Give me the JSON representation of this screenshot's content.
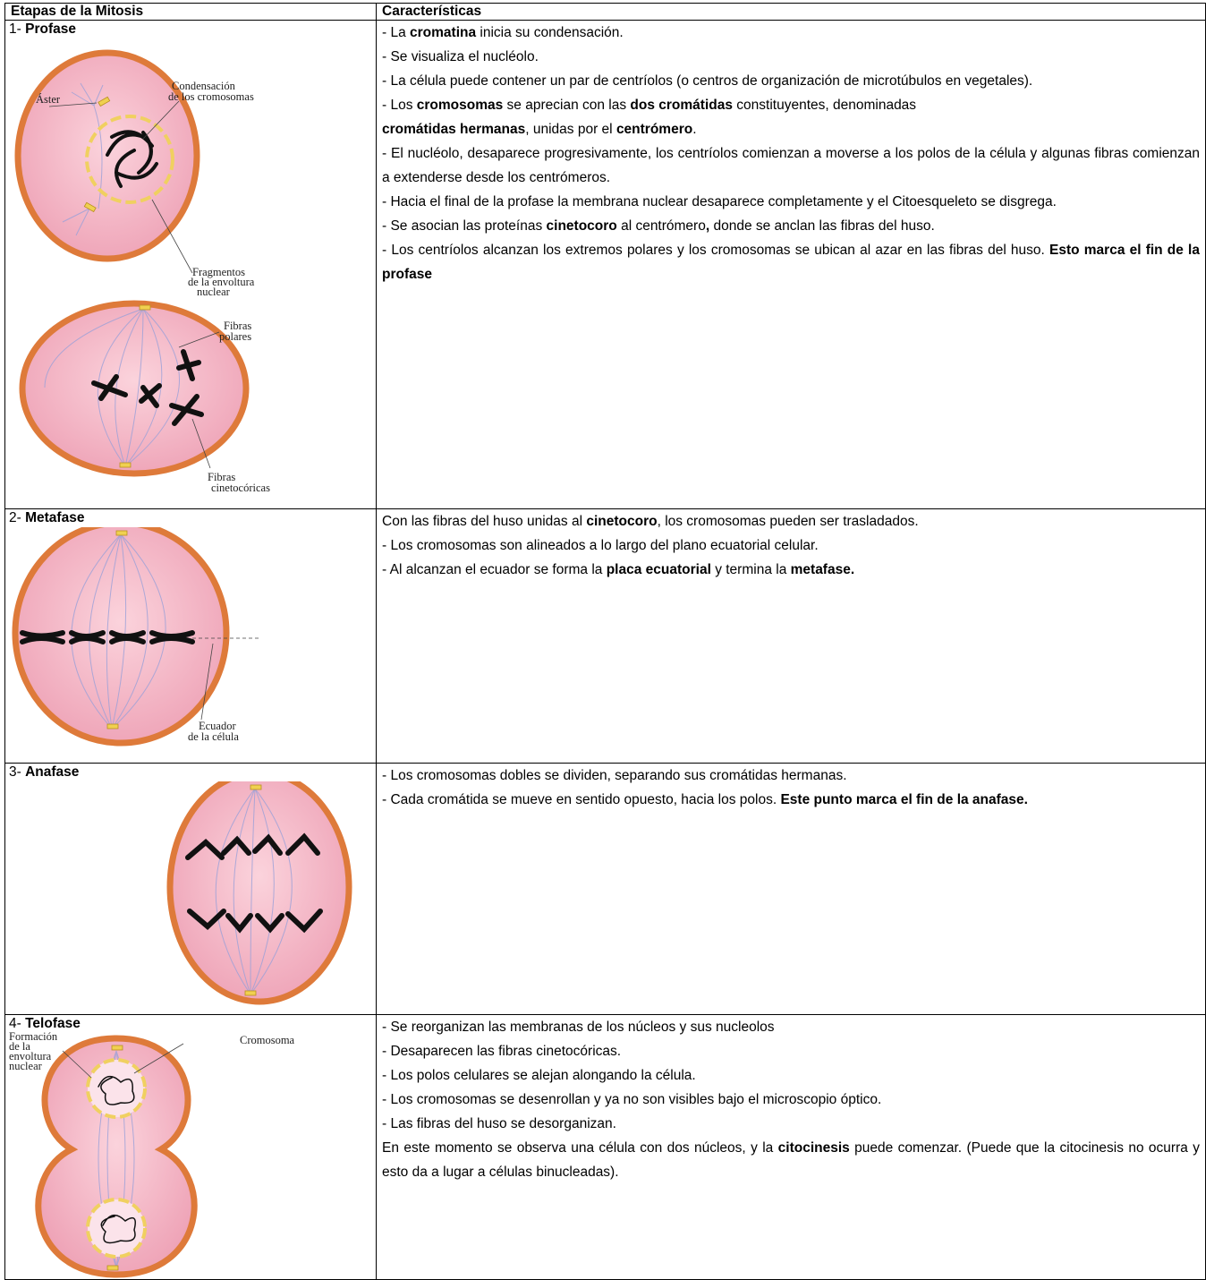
{
  "table": {
    "header": [
      "Etapas de la Mitosis",
      "Características"
    ],
    "rows": [
      {
        "number": "1-",
        "stage": "Profase",
        "figure_labels": [
          [
            "Áster"
          ],
          [
            "Condensación",
            "de los cromosomas"
          ],
          [
            "Fragmentos",
            "de la envoltura",
            "nuclear"
          ],
          [
            "Fibras",
            "polares"
          ],
          [
            "Fibras",
            "cinetocóricas"
          ]
        ],
        "paragraphs": [
          [
            {
              "text": "- La "
            },
            {
              "text": "cromatina",
              "bold": true
            },
            {
              "text": " inicia su condensación."
            }
          ],
          [
            {
              "text": "- Se visualiza el nucléolo."
            }
          ],
          [
            {
              "text": "- La célula puede contener un par de centríolos (o centros de organización de microtúbulos en vegetales)."
            }
          ],
          [
            {
              "text": "- Los "
            },
            {
              "text": "cromosomas",
              "bold": true
            },
            {
              "text": " se aprecian con las "
            },
            {
              "text": "dos cromátidas",
              "bold": true
            },
            {
              "text": " constituyentes, denominadas"
            }
          ],
          [
            {
              "text": "cromátidas hermanas",
              "bold": true
            },
            {
              "text": ", unidas por el "
            },
            {
              "text": "centrómero",
              "bold": true
            },
            {
              "text": "."
            }
          ],
          [
            {
              "text": "- El nucléolo, desaparece progresivamente, los centríolos comienzan a moverse a los polos de la célula y algunas fibras comienzan a extenderse desde los centrómeros."
            }
          ],
          [
            {
              "text": "- Hacia el final de la profase la membrana nuclear desaparece completamente y el Citoesqueleto se disgrega."
            }
          ],
          [
            {
              "text": "- Se asocian las proteínas "
            },
            {
              "text": "cinetocoro",
              "bold": true
            },
            {
              "text": " al centrómero"
            },
            {
              "text": ",",
              "bold": true
            },
            {
              "text": " donde se anclan las fibras del huso."
            }
          ],
          [
            {
              "text": "- Los centríolos alcanzan los extremos polares y los cromosomas se ubican al azar en las fibras del huso. "
            },
            {
              "text": "Esto marca el fin de la profase",
              "bold": true
            }
          ]
        ]
      },
      {
        "number": "2-",
        "stage": "Metafase",
        "figure_labels": [
          [
            "Ecuador",
            "de la célula"
          ]
        ],
        "paragraphs": [
          [
            {
              "text": "Con las fibras del huso unidas al "
            },
            {
              "text": "cinetocoro",
              "bold": true
            },
            {
              "text": ", los cromosomas pueden ser trasladados."
            }
          ],
          [
            {
              "text": "- Los cromosomas son alineados a lo largo del plano ecuatorial celular."
            }
          ],
          [
            {
              "text": "- Al alcanzan el ecuador se forma la "
            },
            {
              "text": "placa ecuatorial",
              "bold": true
            },
            {
              "text": " y termina la "
            },
            {
              "text": "metafase.",
              "bold": true
            }
          ]
        ]
      },
      {
        "number": "3-",
        "stage": "Anafase",
        "paragraphs": [
          [
            {
              "text": "- Los cromosomas dobles se dividen, separando sus cromátidas hermanas."
            }
          ],
          [
            {
              "text": "- Cada cromátida se mueve en sentido opuesto, hacia los polos. "
            },
            {
              "text": "Este punto marca el fin de la anafase.",
              "bold": true
            }
          ]
        ]
      },
      {
        "number": "4-",
        "stage": "Telofase",
        "figure_labels": [
          [
            "Formación",
            "de la",
            "envoltura",
            "nuclear"
          ],
          [
            "Cromosoma"
          ]
        ],
        "paragraphs": [
          [
            {
              "text": "- Se reorganizan las membranas de los núcleos y sus nucleolos"
            }
          ],
          [
            {
              "text": "- Desaparecen las fibras cinetocóricas."
            }
          ],
          [
            {
              "text": "- Los polos celulares se alejan alongando la célula."
            }
          ],
          [
            {
              "text": "- Los cromosomas se desenrollan y ya no son visibles bajo el microscopio óptico."
            }
          ],
          [
            {
              "text": "- Las fibras del huso se desorganizan."
            }
          ],
          [
            {
              "text": "En este momento se observa una célula con dos núcleos, y la "
            },
            {
              "text": "citocinesis",
              "bold": true
            },
            {
              "text": " puede comenzar. (Puede que la citocinesis no ocurra y esto da a lugar a células binucleadas)."
            }
          ]
        ]
      }
    ]
  }
}
